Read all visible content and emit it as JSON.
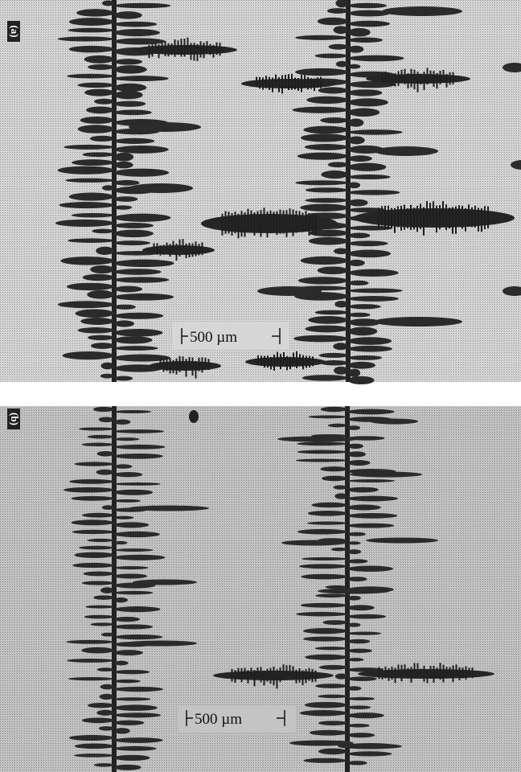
{
  "panels": [
    {
      "label": "(a)",
      "scale_bar": "500 µm"
    },
    {
      "label": "(b)",
      "scale_bar": "500 µm"
    }
  ]
}
